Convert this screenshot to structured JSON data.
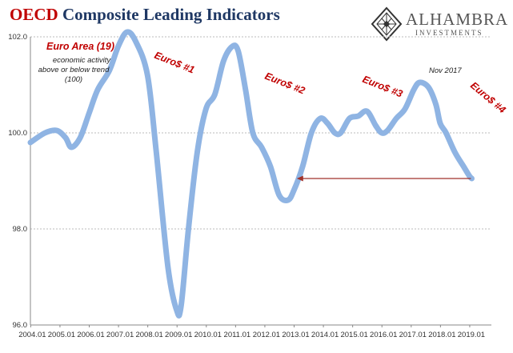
{
  "title": {
    "brand": "OECD",
    "rest": " Composite Leading Indicators"
  },
  "logo": {
    "name": "ALHAMBRA",
    "sub": "INVESTMENTS",
    "icon": "diamond-lattice-icon"
  },
  "colors": {
    "line": "#8fb4e3",
    "annotation": "#c00000",
    "arrow": "#a0322a",
    "title": "#1f3864"
  },
  "chart_data": {
    "type": "line",
    "title": "OECD Composite Leading Indicators",
    "xlabel": "",
    "ylabel": "",
    "ylim": [
      96.0,
      102.0
    ],
    "yticks": [
      "96.0",
      "98.0",
      "100.0",
      "102.0"
    ],
    "xticks": [
      "2004.01",
      "2005.01",
      "2006.01",
      "2007.01",
      "2008.01",
      "2009.01",
      "2010.01",
      "2011.01",
      "2012.01",
      "2013.01",
      "2014.01",
      "2015.01",
      "2016.01",
      "2017.01",
      "2018.01",
      "2019.01"
    ],
    "grid": "horizontal dashed",
    "series": [
      {
        "name": "Euro Area (19)",
        "x": [
          2004.0,
          2004.5,
          2004.9,
          2005.2,
          2005.4,
          2005.7,
          2006.0,
          2006.3,
          2006.7,
          2007.0,
          2007.3,
          2007.6,
          2008.0,
          2008.3,
          2008.7,
          2009.0,
          2009.15,
          2009.4,
          2009.7,
          2010.0,
          2010.3,
          2010.6,
          2010.9,
          2011.1,
          2011.35,
          2011.6,
          2011.9,
          2012.2,
          2012.5,
          2012.8,
          2013.0,
          2013.3,
          2013.6,
          2013.9,
          2014.15,
          2014.4,
          2014.6,
          2014.9,
          2015.2,
          2015.5,
          2015.8,
          2016.0,
          2016.2,
          2016.5,
          2016.8,
          2017.1,
          2017.3,
          2017.6,
          2017.85,
          2018.0,
          2018.2,
          2018.5,
          2018.8,
          2019.0,
          2019.08
        ],
        "values": [
          99.8,
          100.0,
          100.05,
          99.9,
          99.7,
          99.9,
          100.4,
          100.9,
          101.3,
          101.8,
          102.1,
          101.9,
          101.2,
          99.6,
          97.2,
          96.3,
          96.4,
          98.0,
          99.6,
          100.5,
          100.8,
          101.5,
          101.8,
          101.7,
          100.9,
          100.0,
          99.7,
          99.3,
          98.7,
          98.6,
          98.8,
          99.3,
          100.0,
          100.3,
          100.2,
          100.0,
          100.0,
          100.3,
          100.35,
          100.45,
          100.15,
          100.0,
          100.05,
          100.3,
          100.5,
          100.9,
          101.05,
          100.95,
          100.6,
          100.2,
          100.0,
          99.6,
          99.3,
          99.1,
          99.05
        ]
      }
    ],
    "annotations": {
      "series_label": "Euro Area (19)",
      "note_lines": [
        "economic activity",
        "above or below trend",
        "(100)"
      ],
      "eurodollar": [
        "Euro$ #1",
        "Euro$ #2",
        "Euro$ #3",
        "Euro$ #4"
      ],
      "peak": "Nov 2017"
    },
    "arrow": {
      "from_x": 2019.05,
      "to_x": 2013.1,
      "y": 99.05
    }
  }
}
